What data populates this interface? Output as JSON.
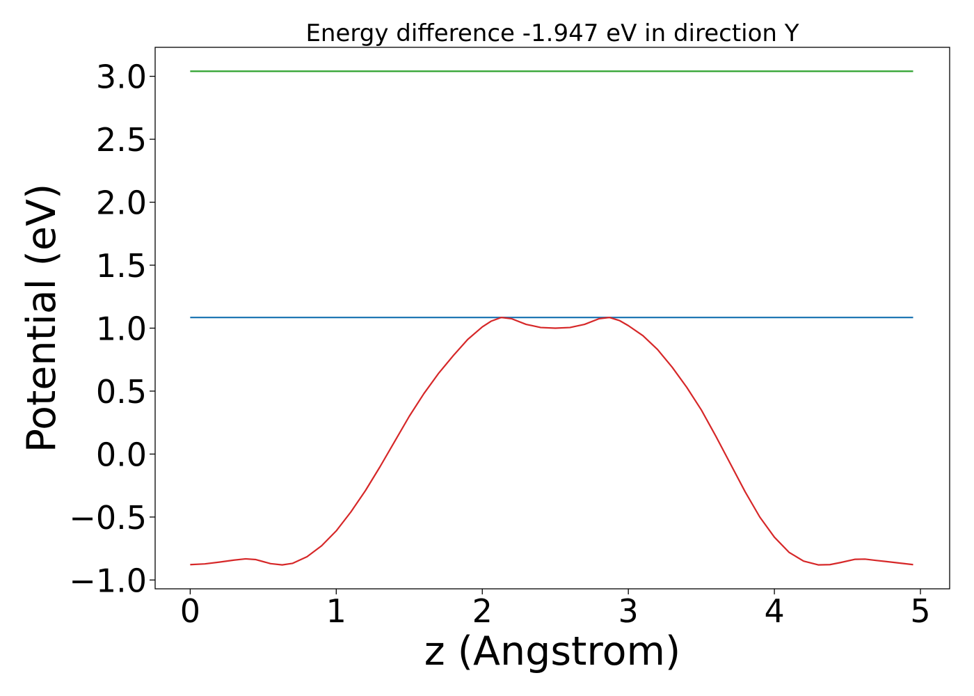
{
  "chart_data": {
    "type": "line",
    "title": "Energy difference -1.947 eV in direction Y",
    "xlabel": "z (Angstrom)",
    "ylabel": "Potential (eV)",
    "xlim": [
      -0.24,
      5.2
    ],
    "ylim": [
      -1.07,
      3.23
    ],
    "grid": false,
    "x_ticks": [
      0,
      1,
      2,
      3,
      4,
      5
    ],
    "x_tick_labels": [
      "0",
      "1",
      "2",
      "3",
      "4",
      "5"
    ],
    "y_ticks": [
      -1.0,
      -0.5,
      0.0,
      0.5,
      1.0,
      1.5,
      2.0,
      2.5,
      3.0
    ],
    "y_tick_labels": [
      "−1.0",
      "−0.5",
      "0.0",
      "0.5",
      "1.0",
      "1.5",
      "2.0",
      "2.5",
      "3.0"
    ],
    "series": [
      {
        "color": "#2ca02c",
        "style": "line",
        "x": [
          0.0,
          4.95
        ],
        "y": [
          3.04,
          3.04
        ]
      },
      {
        "color": "#1f77b4",
        "style": "line",
        "x": [
          0.0,
          4.95
        ],
        "y": [
          1.085,
          1.085
        ]
      },
      {
        "color": "#d62728",
        "style": "line",
        "x": [
          0.0,
          0.1,
          0.2,
          0.3,
          0.38,
          0.45,
          0.55,
          0.63,
          0.7,
          0.8,
          0.9,
          1.0,
          1.1,
          1.2,
          1.3,
          1.4,
          1.5,
          1.6,
          1.7,
          1.8,
          1.9,
          2.0,
          2.06,
          2.13,
          2.2,
          2.3,
          2.4,
          2.5,
          2.6,
          2.7,
          2.8,
          2.87,
          2.94,
          3.0,
          3.1,
          3.2,
          3.3,
          3.4,
          3.5,
          3.6,
          3.7,
          3.8,
          3.9,
          4.0,
          4.1,
          4.2,
          4.3,
          4.38,
          4.45,
          4.55,
          4.62,
          4.7,
          4.8,
          4.95
        ],
        "y": [
          -0.878,
          -0.872,
          -0.858,
          -0.842,
          -0.832,
          -0.838,
          -0.87,
          -0.88,
          -0.868,
          -0.815,
          -0.728,
          -0.61,
          -0.46,
          -0.29,
          -0.1,
          0.1,
          0.3,
          0.48,
          0.64,
          0.78,
          0.91,
          1.01,
          1.055,
          1.085,
          1.075,
          1.03,
          1.005,
          1.0,
          1.005,
          1.03,
          1.075,
          1.085,
          1.06,
          1.02,
          0.94,
          0.83,
          0.69,
          0.53,
          0.35,
          0.14,
          -0.08,
          -0.3,
          -0.5,
          -0.66,
          -0.78,
          -0.85,
          -0.88,
          -0.878,
          -0.862,
          -0.836,
          -0.834,
          -0.845,
          -0.858,
          -0.878
        ]
      }
    ]
  }
}
